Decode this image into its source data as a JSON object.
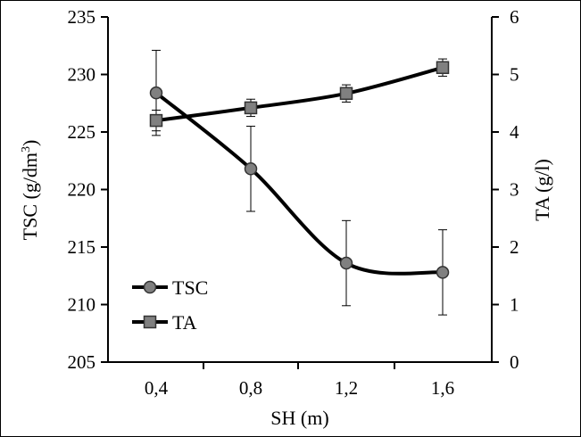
{
  "chart_data": {
    "type": "line",
    "x": [
      "0,4",
      "0,8",
      "1,2",
      "1,6"
    ],
    "xlabel": "SH (m)",
    "ylabel_left": "TSC (g/dm",
    "ylabel_left_sup": "3",
    "ylabel_left_end": ")",
    "ylabel_right": "TA (g/l)",
    "ylim_left": [
      205,
      235
    ],
    "ylim_right": [
      0,
      6
    ],
    "yticks_left": [
      "205",
      "210",
      "215",
      "220",
      "225",
      "230",
      "235"
    ],
    "yticks_right": [
      "0",
      "1",
      "2",
      "3",
      "4",
      "5",
      "6"
    ],
    "grid": false,
    "legend_position": "bottom-left",
    "series": [
      {
        "name": "TSC",
        "axis": "left",
        "marker": "circle",
        "values": [
          228.4,
          221.8,
          213.6,
          212.8
        ],
        "error": [
          3.7,
          3.7,
          3.7,
          3.7
        ]
      },
      {
        "name": "TA",
        "axis": "right",
        "marker": "square",
        "values": [
          4.2,
          4.42,
          4.67,
          5.12
        ],
        "error": [
          0.18,
          0.15,
          0.15,
          0.15
        ]
      }
    ],
    "colors": {
      "line": "#000000",
      "marker_fill": "#808080",
      "marker_stroke": "#333333"
    }
  }
}
